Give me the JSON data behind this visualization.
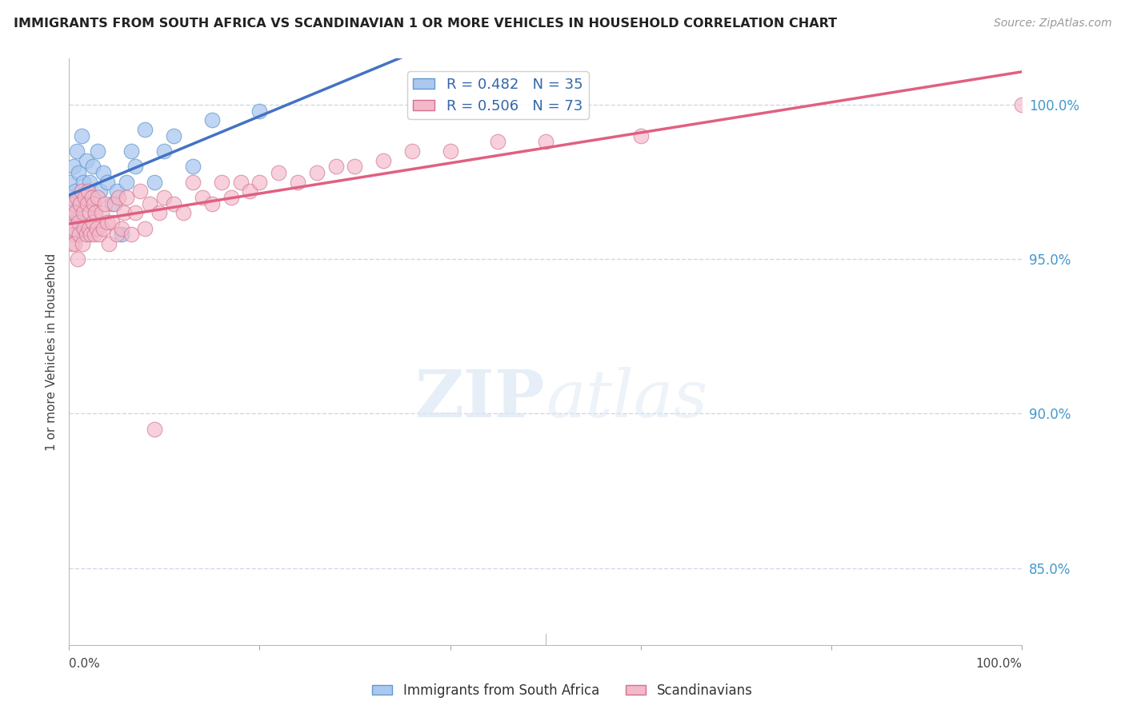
{
  "title": "IMMIGRANTS FROM SOUTH AFRICA VS SCANDINAVIAN 1 OR MORE VEHICLES IN HOUSEHOLD CORRELATION CHART",
  "source": "Source: ZipAtlas.com",
  "ylabel": "1 or more Vehicles in Household",
  "right_ytick_labels": [
    "100.0%",
    "95.0%",
    "90.0%",
    "85.0%"
  ],
  "right_ytick_values": [
    1.0,
    0.95,
    0.9,
    0.85
  ],
  "xlim": [
    0.0,
    1.0
  ],
  "ylim": [
    0.825,
    1.015
  ],
  "blue_color": "#aac8f0",
  "pink_color": "#f4b8c8",
  "blue_line_color": "#4472c4",
  "pink_line_color": "#e06080",
  "background_color": "#ffffff",
  "grid_color": "#d0d8e8",
  "watermark_zip": "ZIP",
  "watermark_atlas": "atlas",
  "legend_label1": "R = 0.482   N = 35",
  "legend_label2": "R = 0.506   N = 73",
  "south_africa_x": [
    0.001,
    0.002,
    0.004,
    0.005,
    0.006,
    0.007,
    0.008,
    0.009,
    0.01,
    0.012,
    0.013,
    0.015,
    0.016,
    0.018,
    0.02,
    0.022,
    0.025,
    0.027,
    0.03,
    0.033,
    0.036,
    0.04,
    0.045,
    0.05,
    0.055,
    0.06,
    0.065,
    0.07,
    0.08,
    0.09,
    0.1,
    0.11,
    0.13,
    0.15,
    0.2
  ],
  "south_africa_y": [
    0.97,
    0.975,
    0.965,
    0.98,
    0.958,
    0.972,
    0.985,
    0.963,
    0.978,
    0.968,
    0.99,
    0.975,
    0.96,
    0.982,
    0.97,
    0.975,
    0.98,
    0.965,
    0.985,
    0.972,
    0.978,
    0.975,
    0.968,
    0.972,
    0.958,
    0.975,
    0.985,
    0.98,
    0.992,
    0.975,
    0.985,
    0.99,
    0.98,
    0.995,
    0.998
  ],
  "scandinavian_x": [
    0.001,
    0.002,
    0.003,
    0.004,
    0.005,
    0.006,
    0.007,
    0.008,
    0.009,
    0.01,
    0.011,
    0.012,
    0.013,
    0.014,
    0.015,
    0.016,
    0.017,
    0.018,
    0.019,
    0.02,
    0.021,
    0.022,
    0.023,
    0.024,
    0.025,
    0.026,
    0.027,
    0.028,
    0.029,
    0.03,
    0.032,
    0.034,
    0.036,
    0.038,
    0.04,
    0.042,
    0.045,
    0.048,
    0.05,
    0.052,
    0.055,
    0.058,
    0.06,
    0.065,
    0.07,
    0.075,
    0.08,
    0.085,
    0.09,
    0.095,
    0.1,
    0.11,
    0.12,
    0.13,
    0.14,
    0.15,
    0.16,
    0.17,
    0.18,
    0.19,
    0.2,
    0.22,
    0.24,
    0.26,
    0.28,
    0.3,
    0.33,
    0.36,
    0.4,
    0.45,
    0.5,
    0.6,
    1.0
  ],
  "scandinavian_y": [
    0.958,
    0.965,
    0.955,
    0.968,
    0.96,
    0.955,
    0.965,
    0.97,
    0.95,
    0.962,
    0.958,
    0.968,
    0.972,
    0.955,
    0.965,
    0.96,
    0.97,
    0.958,
    0.968,
    0.972,
    0.96,
    0.965,
    0.958,
    0.97,
    0.962,
    0.968,
    0.958,
    0.965,
    0.96,
    0.97,
    0.958,
    0.965,
    0.96,
    0.968,
    0.962,
    0.955,
    0.962,
    0.968,
    0.958,
    0.97,
    0.96,
    0.965,
    0.97,
    0.958,
    0.965,
    0.972,
    0.96,
    0.968,
    0.895,
    0.965,
    0.97,
    0.968,
    0.965,
    0.975,
    0.97,
    0.968,
    0.975,
    0.97,
    0.975,
    0.972,
    0.975,
    0.978,
    0.975,
    0.978,
    0.98,
    0.98,
    0.982,
    0.985,
    0.985,
    0.988,
    0.988,
    0.99,
    1.0
  ]
}
